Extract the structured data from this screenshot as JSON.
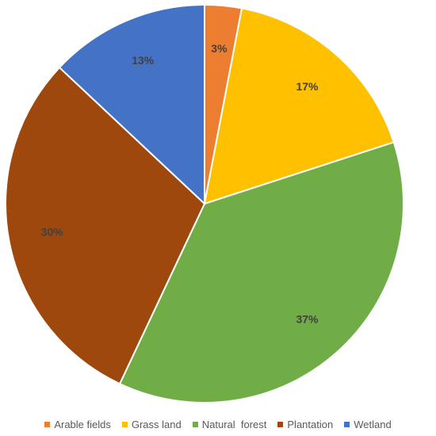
{
  "chart_data": {
    "type": "pie",
    "title": "",
    "categories": [
      "Arable fields",
      "Grass land",
      "Natural  forest",
      "Plantation",
      "Wetland"
    ],
    "values": [
      3,
      17,
      37,
      30,
      13
    ],
    "value_labels": [
      "3%",
      "17%",
      "37%",
      "30%",
      "13%"
    ],
    "colors": [
      "#ED7D31",
      "#FFC000",
      "#70AD47",
      "#9E480E",
      "#4472C4"
    ],
    "start_angle_deg": 0,
    "direction": "clockwise",
    "legend_position": "bottom"
  }
}
